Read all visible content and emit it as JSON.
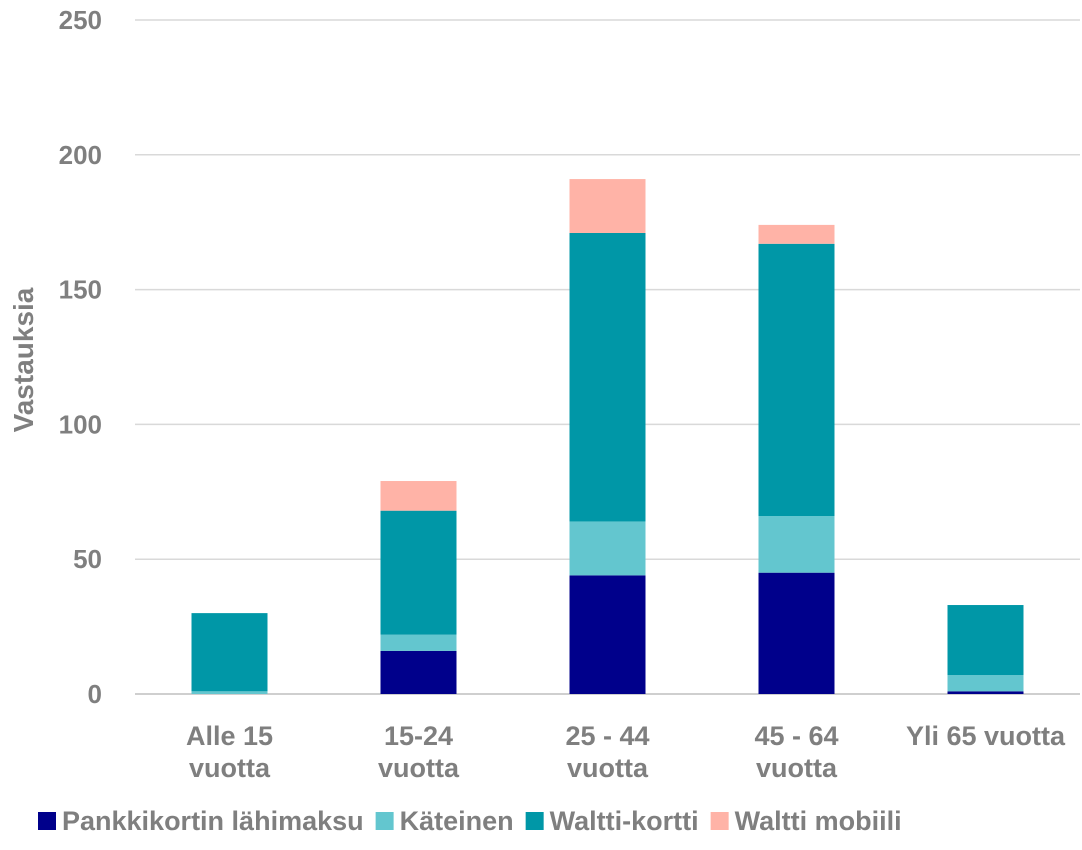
{
  "chart_data": {
    "type": "bar",
    "stacked": true,
    "categories": [
      [
        "Alle 15",
        "vuotta"
      ],
      [
        "15-24",
        "vuotta"
      ],
      [
        "25 - 44",
        "vuotta"
      ],
      [
        "45 - 64",
        "vuotta"
      ],
      [
        "Yli 65 vuotta"
      ]
    ],
    "series": [
      {
        "name": "Pankkikortin lähimaksu",
        "color": "#00008b",
        "values": [
          0,
          16,
          44,
          45,
          1
        ]
      },
      {
        "name": "Käteinen",
        "color": "#63c6cf",
        "values": [
          1,
          6,
          20,
          21,
          6
        ]
      },
      {
        "name": "Waltti-kortti",
        "color": "#0097a7",
        "values": [
          29,
          46,
          107,
          101,
          26
        ]
      },
      {
        "name": "Waltti mobiili",
        "color": "#ffb3a7",
        "values": [
          0,
          11,
          20,
          7,
          0
        ]
      }
    ],
    "ylabel": "Vastauksia",
    "ylim": [
      0,
      250
    ],
    "yticks": [
      "0",
      "50",
      "100",
      "150",
      "200",
      "250"
    ],
    "grid": true,
    "legend_position": "bottom"
  }
}
